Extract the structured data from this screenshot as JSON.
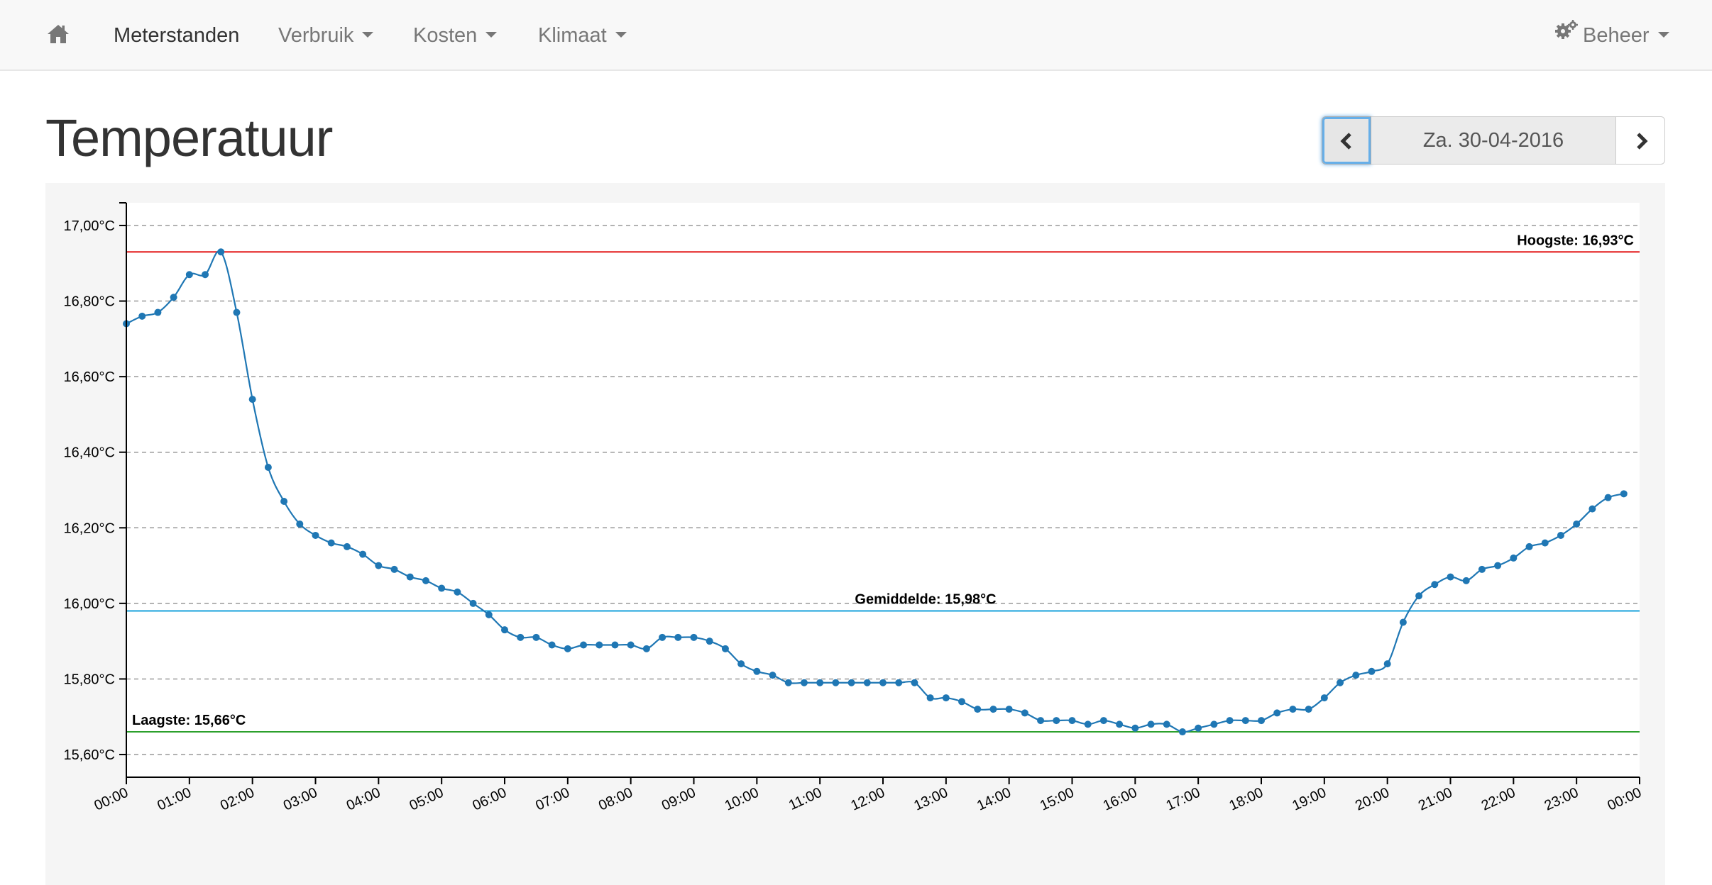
{
  "navbar": {
    "home_icon": "home-icon",
    "items": [
      {
        "label": "Meterstanden",
        "dropdown": false,
        "active": true
      },
      {
        "label": "Verbruik",
        "dropdown": true,
        "active": false
      },
      {
        "label": "Kosten",
        "dropdown": true,
        "active": false
      },
      {
        "label": "Klimaat",
        "dropdown": true,
        "active": false
      }
    ],
    "admin_label": "Beheer",
    "admin_icon": "gears-icon"
  },
  "page": {
    "title": "Temperatuur"
  },
  "date_nav": {
    "prev_icon": "chevron-left-icon",
    "date_label": "Za. 30-04-2016",
    "next_icon": "chevron-right-icon"
  },
  "colors": {
    "series": "#1f77b4",
    "max_line": "#e41a1c",
    "avg_line": "#17a2db",
    "min_line": "#2ca02c",
    "grid": "#999999"
  },
  "chart_data": {
    "type": "line",
    "y_unit_suffix": "°C",
    "ylim": [
      15.54,
      17.06
    ],
    "yticks": [
      15.6,
      15.8,
      16.0,
      16.2,
      16.4,
      16.6,
      16.8,
      17.0
    ],
    "ytick_labels": [
      "15,60°C",
      "15,80°C",
      "16,00°C",
      "16,20°C",
      "16,40°C",
      "16,60°C",
      "16,80°C",
      "17,00°C"
    ],
    "xlim_minutes": [
      0,
      1440
    ],
    "xtick_labels": [
      "00:00",
      "01:00",
      "02:00",
      "03:00",
      "04:00",
      "05:00",
      "06:00",
      "07:00",
      "08:00",
      "09:00",
      "10:00",
      "11:00",
      "12:00",
      "13:00",
      "14:00",
      "15:00",
      "16:00",
      "17:00",
      "18:00",
      "19:00",
      "20:00",
      "21:00",
      "22:00",
      "23:00",
      "00:00"
    ],
    "grid_y": true,
    "reference_lines": [
      {
        "label": "Hoogste: 16,93°C",
        "value": 16.93,
        "color": "#e41a1c",
        "label_position": "right"
      },
      {
        "label": "Gemiddelde: 15,98°C",
        "value": 15.98,
        "color": "#17a2db",
        "label_position": "center"
      },
      {
        "label": "Laagste: 15,66°C",
        "value": 15.66,
        "color": "#2ca02c",
        "label_position": "left"
      }
    ],
    "series": [
      {
        "interval_minutes": 15,
        "values": [
          16.74,
          16.76,
          16.77,
          16.81,
          16.87,
          16.87,
          16.93,
          16.77,
          16.54,
          16.36,
          16.27,
          16.21,
          16.18,
          16.16,
          16.15,
          16.13,
          16.1,
          16.09,
          16.07,
          16.06,
          16.04,
          16.03,
          16.0,
          15.97,
          15.93,
          15.91,
          15.91,
          15.89,
          15.88,
          15.89,
          15.89,
          15.89,
          15.89,
          15.88,
          15.91,
          15.91,
          15.91,
          15.9,
          15.88,
          15.84,
          15.82,
          15.81,
          15.79,
          15.79,
          15.79,
          15.79,
          15.79,
          15.79,
          15.79,
          15.79,
          15.79,
          15.75,
          15.75,
          15.74,
          15.72,
          15.72,
          15.72,
          15.71,
          15.69,
          15.69,
          15.69,
          15.68,
          15.69,
          15.68,
          15.67,
          15.68,
          15.68,
          15.66,
          15.67,
          15.68,
          15.69,
          15.69,
          15.69,
          15.71,
          15.72,
          15.72,
          15.75,
          15.79,
          15.81,
          15.82,
          15.84,
          15.95,
          16.02,
          16.05,
          16.07,
          16.06,
          16.09,
          16.1,
          16.12,
          16.15,
          16.16,
          16.18,
          16.21,
          16.25,
          16.28,
          16.29
        ]
      }
    ]
  }
}
